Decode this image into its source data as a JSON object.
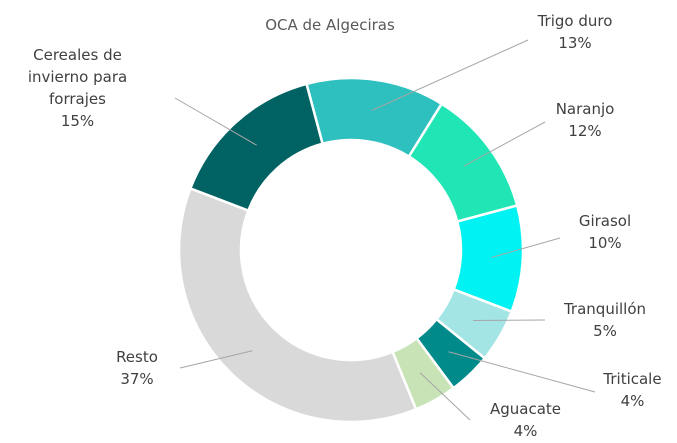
{
  "chart_data": {
    "type": "donut",
    "title": "OCA de Algeciras",
    "categories": [
      "Trigo duro",
      "Naranjo",
      "Girasol",
      "Tranquillón",
      "Triticale",
      "Aguacate",
      "Resto",
      "Cereales de invierno para forrajes"
    ],
    "values": [
      13,
      12,
      10,
      5,
      4,
      4,
      37,
      15
    ],
    "value_labels": [
      "13%",
      "12%",
      "10%",
      "5%",
      "4%",
      "4%",
      "37%",
      "15%"
    ],
    "colors": [
      "#2ebfbf",
      "#1fe6b4",
      "#00f2f2",
      "#a3e4e4",
      "#008a8a",
      "#c8e3b6",
      "#d9d9d9",
      "#006262"
    ]
  }
}
